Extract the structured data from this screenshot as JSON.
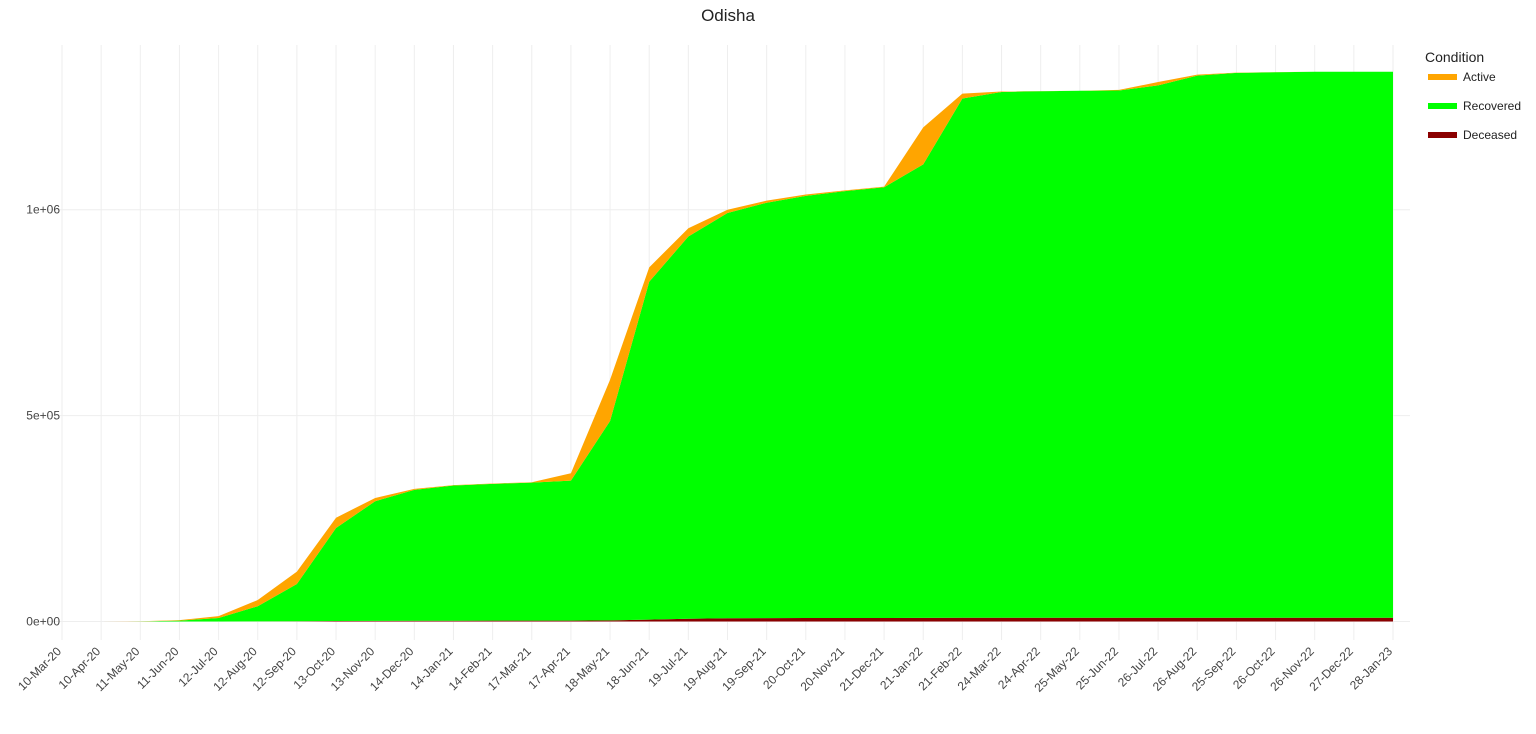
{
  "chart_data": {
    "type": "stacked-area",
    "title": "Odisha",
    "legend_title": "Condition",
    "categories": [
      "10-Mar-20",
      "10-Apr-20",
      "11-May-20",
      "11-Jun-20",
      "12-Jul-20",
      "12-Aug-20",
      "12-Sep-20",
      "13-Oct-20",
      "13-Nov-20",
      "14-Dec-20",
      "14-Jan-21",
      "14-Feb-21",
      "17-Mar-21",
      "17-Apr-21",
      "18-May-21",
      "18-Jun-21",
      "19-Jul-21",
      "19-Aug-21",
      "19-Sep-21",
      "20-Oct-21",
      "20-Nov-21",
      "21-Dec-21",
      "21-Jan-22",
      "21-Feb-22",
      "24-Mar-22",
      "24-Apr-22",
      "25-May-22",
      "25-Jun-22",
      "26-Jul-22",
      "26-Aug-22",
      "25-Sep-22",
      "26-Oct-22",
      "26-Nov-22",
      "27-Dec-22",
      "28-Jan-23"
    ],
    "series": [
      {
        "name": "Active",
        "color": "#ffa500",
        "values": [
          0,
          30,
          300,
          1200,
          4500,
          15000,
          30000,
          25000,
          8000,
          2500,
          900,
          700,
          900,
          18000,
          100000,
          35000,
          20000,
          8000,
          5000,
          3500,
          2000,
          1500,
          90000,
          12000,
          1000,
          300,
          200,
          1500,
          8000,
          2500,
          600,
          200,
          100,
          50,
          30
        ]
      },
      {
        "name": "Recovered",
        "color": "#00ff00",
        "values": [
          0,
          20,
          100,
          2090,
          8440,
          36700,
          90400,
          226000,
          290600,
          317700,
          328200,
          332350,
          335150,
          340000,
          484200,
          820500,
          928500,
          984300,
          1008800,
          1025100,
          1036600,
          1046050,
          1101300,
          1261000,
          1276950,
          1278600,
          1279700,
          1280380,
          1292870,
          1316360,
          1323240,
          1324620,
          1325720,
          1325770,
          1325790
        ]
      },
      {
        "name": "Deceased",
        "color": "#8b0000",
        "values": [
          0,
          0,
          0,
          10,
          60,
          300,
          600,
          1000,
          1400,
          1800,
          1900,
          1950,
          1950,
          2000,
          2800,
          4500,
          6500,
          7700,
          8200,
          8400,
          8400,
          8450,
          8700,
          9000,
          9050,
          9100,
          9100,
          9120,
          9130,
          9140,
          9160,
          9180,
          9180,
          9180,
          9180
        ]
      }
    ],
    "ylim": [
      -45000,
      1400000
    ],
    "yticks": [
      {
        "value": 0,
        "label": "0e+00"
      },
      {
        "value": 500000,
        "label": "5e+05"
      },
      {
        "value": 1000000,
        "label": "1e+06"
      }
    ],
    "grid": true
  }
}
